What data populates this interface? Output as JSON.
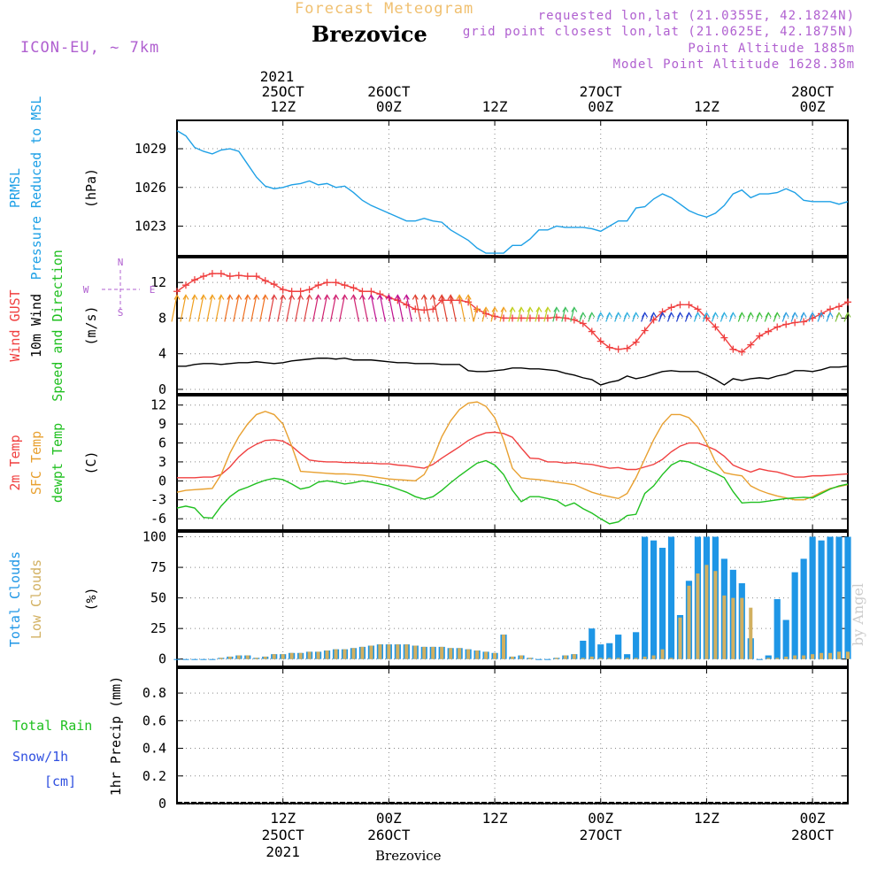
{
  "header": {
    "product_title": "Forecast Meteogram",
    "location": "Brezovice",
    "model": "ICON-EU, ~ 7km",
    "requested": "requested lon,lat (21.0355E, 42.1824N)",
    "grid_point": "grid point closest lon,lat (21.0625E, 42.1875N)",
    "point_altitude": "Point Altitude 1885m",
    "model_altitude": "Model Point Altitude 1628.38m"
  },
  "watermark": "by Angel",
  "footer_location": "Brezovice",
  "time_axis": {
    "top_year": "2021",
    "ticks": [
      {
        "hour": 12,
        "top": [
          "25OCT",
          "12Z"
        ],
        "bottom": [
          "12Z",
          "25OCT",
          "2021"
        ]
      },
      {
        "hour": 24,
        "top": [
          "26OCT",
          "00Z"
        ],
        "bottom": [
          "00Z",
          "26OCT"
        ]
      },
      {
        "hour": 36,
        "top": [
          "12Z"
        ],
        "bottom": [
          "12Z"
        ]
      },
      {
        "hour": 48,
        "top": [
          "27OCT",
          "00Z"
        ],
        "bottom": [
          "00Z",
          "27OCT"
        ]
      },
      {
        "hour": 60,
        "top": [
          "12Z"
        ],
        "bottom": [
          "12Z"
        ]
      },
      {
        "hour": 72,
        "top": [
          "28OCT",
          "00Z"
        ],
        "bottom": [
          "00Z",
          "28OCT"
        ]
      }
    ]
  },
  "colors": {
    "pressure": "#1ea0e6",
    "gust": "#f04040",
    "wind": "#000000",
    "temp2m": "#f04040",
    "sfc_temp": "#e8a030",
    "dewpoint": "#20c020",
    "total_clouds": "#1e96e6",
    "low_clouds": "#d2b060",
    "rain": "#20c020",
    "snow": "#3050e0",
    "compass": "#b060d0"
  },
  "chart_data": [
    {
      "type": "line",
      "panel": "pressure",
      "ylabel_lines": [
        {
          "text": "PRMSL",
          "color_key": "pressure"
        },
        {
          "text": "Pressure Reduced to MSL",
          "color_key": "pressure"
        }
      ],
      "unit": "(hPa)",
      "yticks": [
        1023,
        1026,
        1029
      ],
      "ylim": [
        1020.7,
        1031.2
      ],
      "x_hours": [
        0,
        1,
        2,
        3,
        4,
        5,
        6,
        7,
        8,
        9,
        10,
        11,
        12,
        13,
        14,
        15,
        16,
        17,
        18,
        19,
        20,
        21,
        22,
        23,
        24,
        25,
        26,
        27,
        28,
        29,
        30,
        31,
        32,
        33,
        34,
        35,
        36,
        37,
        38,
        39,
        40,
        41,
        42,
        43,
        44,
        45,
        46,
        47,
        48,
        49,
        50,
        51,
        52,
        53,
        54,
        55,
        56,
        57,
        58,
        59,
        60,
        61,
        62,
        63,
        64,
        65,
        66,
        67,
        68,
        69,
        70,
        71,
        72,
        73,
        74,
        75,
        76
      ],
      "series": [
        {
          "color_key": "pressure",
          "values": [
            1030.4,
            1030.0,
            1029.1,
            1028.8,
            1028.6,
            1028.9,
            1029.0,
            1028.8,
            1027.8,
            1026.8,
            1026.1,
            1025.9,
            1026.0,
            1026.2,
            1026.3,
            1026.5,
            1026.2,
            1026.3,
            1026.0,
            1026.1,
            1025.6,
            1025.0,
            1024.6,
            1024.3,
            1024.0,
            1023.7,
            1023.4,
            1023.4,
            1023.6,
            1023.4,
            1023.3,
            1022.7,
            1022.3,
            1021.9,
            1021.3,
            1020.9,
            1020.9,
            1020.9,
            1021.5,
            1021.5,
            1022.0,
            1022.7,
            1022.7,
            1023.0,
            1022.9,
            1022.9,
            1022.9,
            1022.8,
            1022.6,
            1023.0,
            1023.4,
            1023.4,
            1024.4,
            1024.5,
            1025.1,
            1025.5,
            1025.2,
            1024.7,
            1024.2,
            1023.9,
            1023.7,
            1024.0,
            1024.6,
            1025.5,
            1025.8,
            1025.2,
            1025.5,
            1025.5,
            1025.6,
            1025.9,
            1025.6,
            1025.0,
            1024.9,
            1024.9,
            1024.9,
            1024.7,
            1024.9
          ]
        }
      ]
    },
    {
      "type": "line",
      "panel": "wind",
      "ylabel_lines": [
        {
          "text": "Wind GUST",
          "color_key": "gust"
        },
        {
          "text": "10m Wind",
          "color_key": "wind"
        },
        {
          "text": "Speed and Direction",
          "color_key": "dewpoint"
        }
      ],
      "unit": "(m/s)",
      "compass": {
        "n": "N",
        "s": "S",
        "w": "W",
        "e": "E"
      },
      "yticks": [
        0,
        4,
        8,
        12
      ],
      "ylim": [
        -0.5,
        14.8
      ],
      "x_hours": [
        0,
        1,
        2,
        3,
        4,
        5,
        6,
        7,
        8,
        9,
        10,
        11,
        12,
        13,
        14,
        15,
        16,
        17,
        18,
        19,
        20,
        21,
        22,
        23,
        24,
        25,
        26,
        27,
        28,
        29,
        30,
        31,
        32,
        33,
        34,
        35,
        36,
        37,
        38,
        39,
        40,
        41,
        42,
        43,
        44,
        45,
        46,
        47,
        48,
        49,
        50,
        51,
        52,
        53,
        54,
        55,
        56,
        57,
        58,
        59,
        60,
        61,
        62,
        63,
        64,
        65,
        66,
        67,
        68,
        69,
        70,
        71,
        72,
        73,
        74,
        75,
        76
      ],
      "series": [
        {
          "name": "Wind GUST",
          "color_key": "gust",
          "markers": "plus",
          "values": [
            11.0,
            11.7,
            12.3,
            12.7,
            13.0,
            13.0,
            12.7,
            12.8,
            12.7,
            12.7,
            12.2,
            11.8,
            11.2,
            11.0,
            11.0,
            11.2,
            11.7,
            12.0,
            12.0,
            11.7,
            11.4,
            11.0,
            11.0,
            10.7,
            10.3,
            10.0,
            9.5,
            9.0,
            8.9,
            9.0,
            10.0,
            10.0,
            10.0,
            9.8,
            9.0,
            8.5,
            8.2,
            8.0,
            8.0,
            8.0,
            8.0,
            8.0,
            8.0,
            8.1,
            8.0,
            7.8,
            7.4,
            6.5,
            5.4,
            4.7,
            4.5,
            4.6,
            5.3,
            6.6,
            7.8,
            8.7,
            9.2,
            9.5,
            9.5,
            9.0,
            8.0,
            7.0,
            5.8,
            4.5,
            4.2,
            5.0,
            6.0,
            6.5,
            7.0,
            7.3,
            7.5,
            7.6,
            8.0,
            8.5,
            9.0,
            9.3,
            9.8
          ]
        },
        {
          "name": "10m Wind",
          "color_key": "wind",
          "values": [
            2.6,
            2.6,
            2.8,
            2.9,
            2.9,
            2.8,
            2.9,
            3.0,
            3.0,
            3.1,
            3.0,
            2.9,
            3.0,
            3.2,
            3.3,
            3.4,
            3.5,
            3.5,
            3.4,
            3.5,
            3.3,
            3.3,
            3.3,
            3.2,
            3.1,
            3.0,
            3.0,
            2.9,
            2.9,
            2.9,
            2.8,
            2.8,
            2.8,
            2.1,
            2.0,
            2.0,
            2.1,
            2.2,
            2.4,
            2.4,
            2.3,
            2.3,
            2.2,
            2.1,
            1.8,
            1.6,
            1.3,
            1.1,
            0.5,
            0.8,
            1.0,
            1.5,
            1.2,
            1.4,
            1.7,
            2.0,
            2.1,
            2.0,
            2.0,
            2.0,
            1.6,
            1.1,
            0.5,
            1.2,
            1.0,
            1.2,
            1.3,
            1.2,
            1.5,
            1.7,
            2.1,
            2.1,
            2.0,
            2.2,
            2.5,
            2.5,
            2.6
          ]
        }
      ],
      "barbs_shown": true
    },
    {
      "type": "line",
      "panel": "temperature",
      "ylabel_lines": [
        {
          "text": "2m Temp",
          "color_key": "temp2m"
        },
        {
          "text": "SFC Temp",
          "color_key": "sfc_temp"
        },
        {
          "text": "dewpt Temp",
          "color_key": "dewpoint"
        }
      ],
      "unit": "(C)",
      "yticks": [
        -6,
        -3,
        0,
        3,
        6,
        9,
        12
      ],
      "ylim": [
        -7.8,
        13.5
      ],
      "x_hours": [
        0,
        1,
        2,
        3,
        4,
        5,
        6,
        7,
        8,
        9,
        10,
        11,
        12,
        13,
        14,
        15,
        16,
        17,
        18,
        19,
        20,
        21,
        22,
        23,
        24,
        25,
        26,
        27,
        28,
        29,
        30,
        31,
        32,
        33,
        34,
        35,
        36,
        37,
        38,
        39,
        40,
        41,
        42,
        43,
        44,
        45,
        46,
        47,
        48,
        49,
        50,
        51,
        52,
        53,
        54,
        55,
        56,
        57,
        58,
        59,
        60,
        61,
        62,
        63,
        64,
        65,
        66,
        67,
        68,
        69,
        70,
        71,
        72,
        73,
        74,
        75,
        76
      ],
      "series": [
        {
          "name": "2m Temp",
          "color_key": "temp2m",
          "values": [
            0.5,
            0.5,
            0.5,
            0.6,
            0.6,
            1.0,
            2.2,
            3.8,
            5.0,
            5.8,
            6.4,
            6.5,
            6.3,
            5.5,
            4.3,
            3.3,
            3.1,
            3.0,
            3.0,
            2.9,
            2.9,
            2.8,
            2.8,
            2.7,
            2.7,
            2.5,
            2.4,
            2.2,
            2.0,
            2.6,
            3.6,
            4.5,
            5.4,
            6.4,
            7.1,
            7.6,
            7.7,
            7.5,
            6.9,
            5.2,
            3.6,
            3.5,
            3.0,
            3.0,
            2.8,
            2.9,
            2.7,
            2.6,
            2.3,
            2.0,
            2.1,
            1.8,
            1.8,
            2.2,
            2.6,
            3.4,
            4.6,
            5.5,
            6.0,
            6.0,
            5.5,
            4.9,
            3.9,
            2.5,
            1.9,
            1.4,
            1.9,
            1.6,
            1.4,
            1.0,
            0.6,
            0.6,
            0.8,
            0.8,
            0.9,
            1.0,
            1.1
          ]
        },
        {
          "name": "SFC Temp",
          "color_key": "sfc_temp",
          "values": [
            -1.8,
            -1.5,
            -1.4,
            -1.3,
            -1.2,
            1.0,
            4.4,
            7.0,
            9.0,
            10.5,
            11.0,
            10.5,
            9.0,
            5.5,
            1.5,
            1.4,
            1.3,
            1.2,
            1.1,
            1.1,
            1.0,
            0.9,
            0.7,
            0.5,
            0.3,
            0.2,
            0.1,
            0.0,
            1.0,
            3.5,
            7.0,
            9.5,
            11.3,
            12.3,
            12.5,
            11.8,
            10.0,
            6.5,
            2.0,
            0.5,
            0.3,
            0.2,
            0.0,
            -0.2,
            -0.4,
            -0.6,
            -1.2,
            -1.8,
            -2.2,
            -2.5,
            -2.8,
            -2.0,
            0.5,
            3.5,
            6.5,
            9.0,
            10.5,
            10.5,
            10.0,
            8.5,
            6.0,
            3.0,
            1.3,
            1.0,
            0.8,
            -0.8,
            -1.5,
            -2.0,
            -2.4,
            -2.7,
            -3.0,
            -3.0,
            -2.5,
            -1.8,
            -1.2,
            -0.9,
            -0.6
          ]
        },
        {
          "name": "dewpt Temp",
          "color_key": "dewpoint",
          "values": [
            -4.3,
            -4.0,
            -4.3,
            -5.8,
            -5.9,
            -4.0,
            -2.5,
            -1.5,
            -1.0,
            -0.4,
            0.1,
            0.4,
            0.2,
            -0.5,
            -1.3,
            -1.0,
            -0.2,
            0.0,
            -0.2,
            -0.5,
            -0.3,
            0.0,
            -0.2,
            -0.5,
            -0.8,
            -1.3,
            -1.8,
            -2.5,
            -2.9,
            -2.5,
            -1.5,
            -0.3,
            0.8,
            1.8,
            2.8,
            3.2,
            2.5,
            1.0,
            -1.5,
            -3.3,
            -2.5,
            -2.5,
            -2.8,
            -3.1,
            -4.0,
            -3.5,
            -4.4,
            -5.1,
            -6.0,
            -6.8,
            -6.5,
            -5.5,
            -5.3,
            -2.0,
            -0.8,
            1.0,
            2.5,
            3.2,
            3.0,
            2.4,
            1.8,
            1.2,
            0.5,
            -1.7,
            -3.5,
            -3.4,
            -3.4,
            -3.2,
            -3.0,
            -2.8,
            -2.7,
            -2.6,
            -2.7,
            -2.0,
            -1.3,
            -0.8,
            -0.5
          ]
        }
      ]
    },
    {
      "type": "bar",
      "panel": "clouds",
      "ylabel_lines": [
        {
          "text": "Total Clouds",
          "color_key": "total_clouds"
        },
        {
          "text": "Low Clouds",
          "color_key": "low_clouds"
        }
      ],
      "unit": "(%)",
      "yticks": [
        0,
        25,
        50,
        75,
        100
      ],
      "ylim": [
        -6,
        104
      ],
      "x_hours": [
        0,
        1,
        2,
        3,
        4,
        5,
        6,
        7,
        8,
        9,
        10,
        11,
        12,
        13,
        14,
        15,
        16,
        17,
        18,
        19,
        20,
        21,
        22,
        23,
        24,
        25,
        26,
        27,
        28,
        29,
        30,
        31,
        32,
        33,
        34,
        35,
        36,
        37,
        38,
        39,
        40,
        41,
        42,
        43,
        44,
        45,
        46,
        47,
        48,
        49,
        50,
        51,
        52,
        53,
        54,
        55,
        56,
        57,
        58,
        59,
        60,
        61,
        62,
        63,
        64,
        65,
        66,
        67,
        68,
        69,
        70,
        71,
        72,
        73,
        74,
        75,
        76
      ],
      "series": [
        {
          "name": "Total Clouds",
          "color_key": "total_clouds",
          "values": [
            0,
            0,
            0,
            0,
            0,
            1,
            2,
            3,
            3,
            1,
            2,
            4,
            4,
            5,
            5,
            6,
            6,
            7,
            8,
            8,
            9,
            10,
            11,
            12,
            12,
            12,
            12,
            11,
            10,
            10,
            10,
            9,
            9,
            8,
            7,
            6,
            5,
            20,
            2,
            3,
            1,
            0,
            0,
            1,
            3,
            4,
            15,
            25,
            12,
            13,
            20,
            4,
            22,
            100,
            97,
            91,
            100,
            36,
            64,
            100,
            100,
            100,
            82,
            73,
            62,
            17,
            0,
            3,
            49,
            32,
            71,
            82,
            100,
            97,
            100,
            100,
            100
          ]
        },
        {
          "name": "Low Clouds",
          "color_key": "low_clouds",
          "values": [
            0,
            0,
            0,
            0,
            0,
            1,
            2,
            3,
            3,
            1,
            2,
            4,
            4,
            5,
            5,
            6,
            6,
            7,
            8,
            8,
            9,
            10,
            11,
            12,
            12,
            12,
            12,
            11,
            10,
            10,
            10,
            9,
            9,
            8,
            7,
            6,
            5,
            20,
            2,
            3,
            1,
            0,
            0,
            1,
            3,
            4,
            1,
            2,
            1,
            1,
            1,
            1,
            1,
            2,
            3,
            8,
            1,
            34,
            60,
            70,
            77,
            72,
            52,
            50,
            50,
            42,
            0,
            1,
            1,
            2,
            3,
            3,
            4,
            5,
            5,
            6,
            6
          ]
        }
      ]
    },
    {
      "type": "line",
      "panel": "precipitation",
      "ylabel_lines": [
        {
          "text": "Total  Rain",
          "color_key": "rain"
        },
        {
          "text": "Snow/1h",
          "color_key": "snow"
        },
        {
          "text": "[cm]",
          "color_key": "snow"
        }
      ],
      "unit": "1hr Precip (mm)",
      "yticks": [
        0,
        0.2,
        0.4,
        0.6,
        0.8
      ],
      "ylim": [
        0,
        0.98
      ],
      "series": [
        {
          "name": "Total Rain",
          "color_key": "rain",
          "values": [
            0,
            0,
            0,
            0,
            0,
            0,
            0
          ]
        }
      ]
    }
  ]
}
